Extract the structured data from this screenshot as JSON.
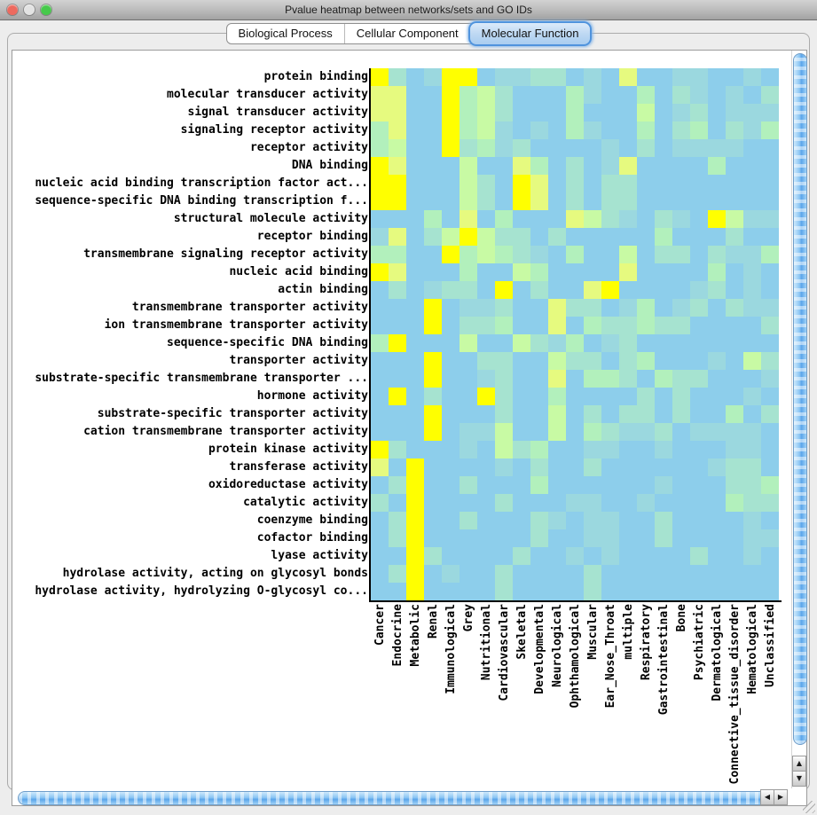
{
  "window": {
    "title": "Pvalue heatmap between networks/sets and GO IDs",
    "traffic_lights": [
      {
        "name": "close",
        "color": "#ED6A5F"
      },
      {
        "name": "minimize",
        "color": "#E3E3E3"
      },
      {
        "name": "zoom",
        "color": "#46C94B"
      }
    ]
  },
  "tabs": [
    {
      "label": "Biological Process",
      "selected": false
    },
    {
      "label": "Cellular Component",
      "selected": false
    },
    {
      "label": "Molecular Function",
      "selected": true
    }
  ],
  "icons": {
    "scroll_up": "▲",
    "scroll_down": "▼",
    "scroll_left": "◀",
    "scroll_right": "▶"
  },
  "chart_data": {
    "type": "heatmap",
    "title": "Pvalue heatmap between networks/sets and GO IDs",
    "rows": [
      "protein binding",
      "molecular transducer activity",
      "signal transducer activity",
      "signaling receptor activity",
      "receptor activity",
      "DNA binding",
      "nucleic acid binding transcription factor act...",
      "sequence-specific DNA binding transcription f...",
      "structural molecule activity",
      "receptor binding",
      "transmembrane signaling receptor activity",
      "nucleic acid binding",
      "actin binding",
      "transmembrane transporter activity",
      "ion transmembrane transporter activity",
      "sequence-specific DNA binding",
      "transporter activity",
      "substrate-specific transmembrane transporter ...",
      "hormone activity",
      "substrate-specific transporter activity",
      "cation transmembrane transporter activity",
      "protein kinase activity",
      "transferase activity",
      "oxidoreductase activity",
      "catalytic activity",
      "coenzyme binding",
      "cofactor binding",
      "lyase activity",
      "hydrolase activity, acting on glycosyl bonds",
      "hydrolase activity, hydrolyzing O-glycosyl co..."
    ],
    "columns": [
      "Cancer",
      "Endocrine",
      "Metabolic",
      "Renal",
      "Immunological",
      "Grey",
      "Nutritional",
      "Cardiovascular",
      "Skeletal",
      "Developmental",
      "Neurological",
      "Ophthamological",
      "Muscular",
      "Ear_Nose_Throat",
      "multiple",
      "Respiratory",
      "Gastrointestinal",
      "Bone",
      "Psychiatric",
      "Dermatological",
      "Connective_tissue_disorder",
      "Hematological",
      "Unclassified"
    ],
    "palette": [
      "#8DCEEB",
      "#9BD8DF",
      "#A6E3D0",
      "#B2F0BC",
      "#C8FAA4",
      "#E6FA7F",
      "#FFFF00"
    ],
    "legend": "cell values are palette indices 0-6; 0 = light blue (high p-value), 6 = yellow (lowest p-value)",
    "cells": [
      "62016601122010500110010",
      "55006342000310030210102",
      "55006342000300040120111",
      "35006341010310030230213",
      "34006231200001020111100",
      "65000400530201500003000",
      "66000420650202200000000",
      "66000420650202200000000",
      "00030503000542102106411",
      "15024642202000003000200",
      "33006343210300402202113",
      "65000300430000500003010",
      "02012206020056000012010",
      "00060112005220130120211",
      "00060223005032232200002",
      "36000400421301200000000",
      "00060022004220230001042",
      "00060012005033203220001",
      "06020062003000020200010",
      "00060002004020220200302",
      "00060114004032112011110",
      "62000104230011001000110",
      "50600001020020000001220",
      "02600200030000001000223",
      "20600002000110010000322",
      "02600200021011002000010",
      "02600000020011002000011",
      "00620000200101000020010",
      "02601002000020000000000",
      "00600002000020000000000"
    ]
  }
}
